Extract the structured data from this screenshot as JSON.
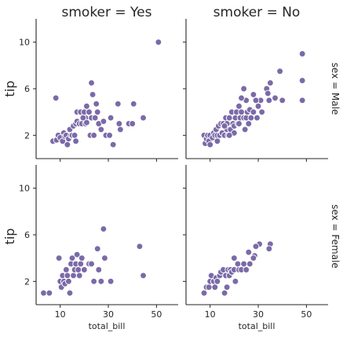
{
  "chart_data": {
    "type": "scatter",
    "x_label": "total_bill",
    "y_label": "tip",
    "x_ticks": [
      10,
      30,
      50
    ],
    "y_ticks": [
      2,
      6,
      10
    ],
    "xlim": [
      0,
      59
    ],
    "ylim": [
      0,
      12
    ],
    "point_color": "#7b6aa8",
    "col_labels": [
      "smoker = Yes",
      "smoker = No"
    ],
    "row_labels": [
      "sex = Male",
      "sex = Female"
    ],
    "panels": [
      {
        "row": "sex = Male",
        "col": "smoker = Yes",
        "points": [
          [
            50.8,
            10
          ],
          [
            8.2,
            5.2
          ],
          [
            20.5,
            3.5
          ],
          [
            23.0,
            6.5
          ],
          [
            21.0,
            4.5
          ],
          [
            23.5,
            5.5
          ],
          [
            25.0,
            4.7
          ],
          [
            34.0,
            4.7
          ],
          [
            40.5,
            4.7
          ],
          [
            7.0,
            1.5
          ],
          [
            8.5,
            1.6
          ],
          [
            9.2,
            2.0
          ],
          [
            10.0,
            1.8
          ],
          [
            11.0,
            1.5
          ],
          [
            11.5,
            2.2
          ],
          [
            12.0,
            1.9
          ],
          [
            12.5,
            2.0
          ],
          [
            13.0,
            1.2
          ],
          [
            13.5,
            1.7
          ],
          [
            14.0,
            2.5
          ],
          [
            14.5,
            2.0
          ],
          [
            15.0,
            2.0
          ],
          [
            15.5,
            2.8
          ],
          [
            16.0,
            2.0
          ],
          [
            16.5,
            1.5
          ],
          [
            16.5,
            3.0
          ],
          [
            17.0,
            4.0
          ],
          [
            17.0,
            3.2
          ],
          [
            18.0,
            3.0
          ],
          [
            18.5,
            4.0
          ],
          [
            19.0,
            3.0
          ],
          [
            19.5,
            3.5
          ],
          [
            20.0,
            4.0
          ],
          [
            20.5,
            3.0
          ],
          [
            21.0,
            3.1
          ],
          [
            22.0,
            4.0
          ],
          [
            22.5,
            2.0
          ],
          [
            23.0,
            3.5
          ],
          [
            24.0,
            2.0
          ],
          [
            24.5,
            3.5
          ],
          [
            25.5,
            4.0
          ],
          [
            26.0,
            3.0
          ],
          [
            27.0,
            2.5
          ],
          [
            28.0,
            3.2
          ],
          [
            29.0,
            2.0
          ],
          [
            30.5,
            2.0
          ],
          [
            31.0,
            3.5
          ],
          [
            32.0,
            1.2
          ],
          [
            34.5,
            3.0
          ],
          [
            35.0,
            2.5
          ],
          [
            38.5,
            3.0
          ],
          [
            40.0,
            3.0
          ],
          [
            44.5,
            3.5
          ]
        ]
      },
      {
        "row": "sex = Male",
        "col": "smoker = No",
        "points": [
          [
            48.3,
            9.0
          ],
          [
            39.0,
            7.5
          ],
          [
            48.3,
            6.7
          ],
          [
            35.0,
            6.5
          ],
          [
            33.5,
            6.0
          ],
          [
            34.0,
            5.6
          ],
          [
            37.0,
            5.2
          ],
          [
            34.5,
            5.0
          ],
          [
            40.0,
            5.0
          ],
          [
            48.3,
            5.0
          ],
          [
            31.0,
            5.0
          ],
          [
            29.0,
            5.0
          ],
          [
            28.0,
            5.5
          ],
          [
            24.0,
            6.0
          ],
          [
            25.0,
            5.0
          ],
          [
            23.0,
            5.2
          ],
          [
            7.5,
            2.0
          ],
          [
            8.0,
            1.3
          ],
          [
            8.5,
            1.7
          ],
          [
            9.0,
            2.0
          ],
          [
            9.5,
            1.5
          ],
          [
            10.0,
            2.0
          ],
          [
            10.0,
            1.2
          ],
          [
            11.0,
            1.8
          ],
          [
            11.5,
            2.2
          ],
          [
            12.0,
            2.0
          ],
          [
            12.5,
            2.5
          ],
          [
            13.0,
            1.5
          ],
          [
            13.0,
            2.0
          ],
          [
            13.5,
            2.8
          ],
          [
            14.0,
            2.0
          ],
          [
            14.5,
            3.0
          ],
          [
            15.0,
            2.2
          ],
          [
            15.5,
            3.0
          ],
          [
            16.0,
            2.0
          ],
          [
            16.5,
            3.5
          ],
          [
            17.0,
            2.5
          ],
          [
            17.0,
            3.0
          ],
          [
            17.5,
            2.0
          ],
          [
            18.0,
            3.5
          ],
          [
            18.5,
            2.5
          ],
          [
            19.0,
            4.0
          ],
          [
            19.5,
            3.0
          ],
          [
            20.0,
            2.8
          ],
          [
            20.5,
            3.5
          ],
          [
            21.0,
            4.0
          ],
          [
            21.5,
            3.0
          ],
          [
            22.0,
            4.5
          ],
          [
            22.5,
            3.5
          ],
          [
            23.0,
            4.0
          ],
          [
            24.0,
            3.5
          ],
          [
            24.5,
            2.5
          ],
          [
            25.0,
            3.5
          ],
          [
            25.5,
            4.0
          ],
          [
            26.0,
            3.0
          ],
          [
            26.5,
            4.2
          ],
          [
            27.0,
            3.5
          ],
          [
            28.0,
            4.0
          ],
          [
            29.5,
            3.5
          ],
          [
            30.0,
            4.5
          ],
          [
            31.5,
            4.0
          ],
          [
            20.0,
            2.2
          ],
          [
            16.0,
            2.8
          ],
          [
            18.0,
            2.0
          ],
          [
            22.0,
            3.0
          ]
        ]
      },
      {
        "row": "sex = Female",
        "col": "smoker = Yes",
        "points": [
          [
            3.1,
            1.0
          ],
          [
            5.5,
            1.0
          ],
          [
            9.5,
            4.0
          ],
          [
            10.0,
            2.0
          ],
          [
            10.5,
            1.5
          ],
          [
            11.0,
            2.5
          ],
          [
            11.5,
            2.0
          ],
          [
            12.0,
            1.8
          ],
          [
            12.5,
            3.0
          ],
          [
            13.0,
            2.5
          ],
          [
            13.5,
            2.0
          ],
          [
            14.0,
            1.0
          ],
          [
            14.5,
            3.5
          ],
          [
            15.0,
            4.0
          ],
          [
            15.5,
            2.5
          ],
          [
            16.0,
            3.0
          ],
          [
            16.5,
            3.5
          ],
          [
            17.0,
            4.3
          ],
          [
            17.5,
            3.0
          ],
          [
            18.0,
            2.5
          ],
          [
            18.5,
            3.5
          ],
          [
            19.0,
            4.0
          ],
          [
            20.0,
            3.0
          ],
          [
            22.0,
            3.5
          ],
          [
            23.0,
            3.5
          ],
          [
            24.0,
            2.0
          ],
          [
            25.5,
            4.8
          ],
          [
            26.0,
            3.0
          ],
          [
            27.0,
            2.0
          ],
          [
            28.0,
            6.5
          ],
          [
            28.5,
            4.0
          ],
          [
            31.0,
            2.0
          ],
          [
            43.0,
            5.0
          ],
          [
            44.5,
            2.5
          ]
        ]
      },
      {
        "row": "sex = Female",
        "col": "smoker = No",
        "points": [
          [
            35.0,
            5.2
          ],
          [
            34.5,
            4.8
          ],
          [
            30.5,
            5.2
          ],
          [
            29.0,
            5.0
          ],
          [
            26.0,
            4.5
          ],
          [
            28.5,
            4.2
          ],
          [
            7.5,
            1.0
          ],
          [
            8.5,
            1.5
          ],
          [
            9.5,
            1.5
          ],
          [
            10.0,
            2.0
          ],
          [
            10.5,
            2.5
          ],
          [
            11.5,
            2.0
          ],
          [
            12.0,
            1.5
          ],
          [
            12.5,
            2.3
          ],
          [
            13.0,
            2.0
          ],
          [
            14.0,
            2.5
          ],
          [
            14.5,
            2.8
          ],
          [
            15.5,
            3.0
          ],
          [
            16.0,
            1.0
          ],
          [
            16.5,
            2.5
          ],
          [
            17.0,
            1.5
          ],
          [
            17.5,
            3.0
          ],
          [
            18.0,
            2.5
          ],
          [
            18.5,
            3.0
          ],
          [
            19.0,
            2.8
          ],
          [
            20.0,
            3.0
          ],
          [
            20.5,
            2.0
          ],
          [
            21.5,
            3.5
          ],
          [
            22.0,
            3.0
          ],
          [
            23.0,
            3.0
          ],
          [
            24.0,
            3.5
          ],
          [
            25.0,
            3.0
          ],
          [
            26.5,
            3.5
          ],
          [
            28.0,
            4.0
          ],
          [
            20.0,
            4.0
          ]
        ]
      }
    ]
  }
}
